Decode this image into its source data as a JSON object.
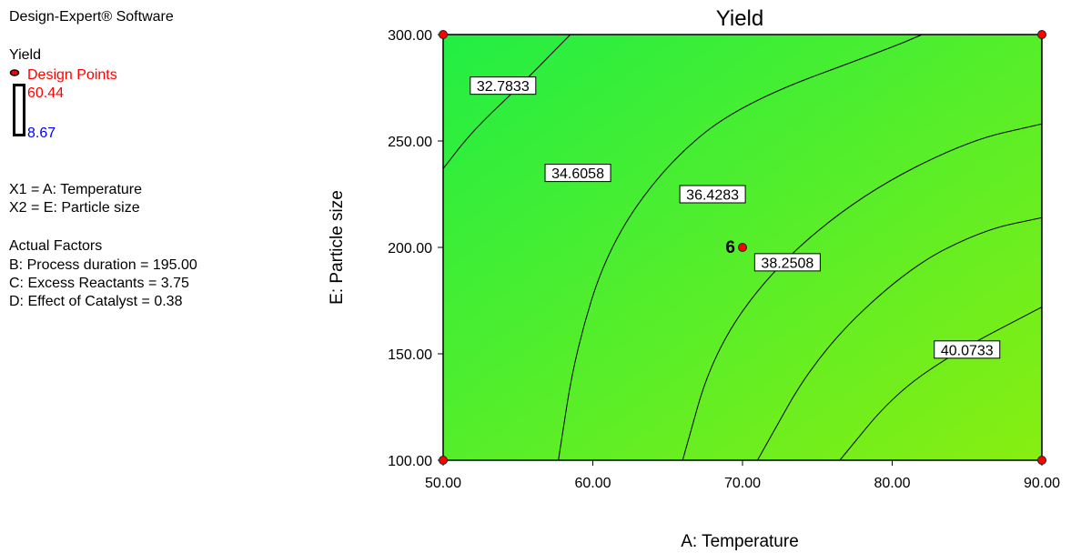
{
  "sidebar": {
    "software": "Design-Expert® Software",
    "response": "Yield",
    "design_points_label": "Design Points",
    "scale_high": "60.44",
    "scale_low": "8.67",
    "x1": "X1 = A: Temperature",
    "x2": "X2 = E: Particle size",
    "actual_factors_title": "Actual Factors",
    "factors": [
      "B: Process duration = 195.00",
      "C: Excess Reactants = 3.75",
      "D: Effect of Catalyst = 0.38"
    ]
  },
  "colors": {
    "design_point": "#ff0000",
    "high_value": "#ff0000",
    "low_value": "#0000ff",
    "fill_top_left": "#22ee44",
    "fill_bottom_right": "#88ee11"
  },
  "chart_data": {
    "type": "contour",
    "title": "Yield",
    "xlabel": "A: Temperature",
    "ylabel": "E: Particle size",
    "xlim": [
      50,
      90
    ],
    "ylim": [
      100,
      300
    ],
    "x_ticks": [
      "50.00",
      "60.00",
      "70.00",
      "80.00",
      "90.00"
    ],
    "y_ticks": [
      "100.00",
      "150.00",
      "200.00",
      "250.00",
      "300.00"
    ],
    "contours": [
      {
        "label": "32.7833",
        "points": [
          [
            50,
            237
          ],
          [
            52,
            255
          ],
          [
            55,
            275
          ],
          [
            58.5,
            300
          ]
        ],
        "label_at": [
          54,
          276
        ]
      },
      {
        "label": "34.6058",
        "points": [
          [
            57.7,
            100
          ],
          [
            58.8,
            150
          ],
          [
            61,
            200
          ],
          [
            65,
            240
          ],
          [
            70,
            268
          ],
          [
            80,
            294
          ],
          [
            82,
            300
          ]
        ],
        "label_at": [
          59,
          235
        ]
      },
      {
        "label": "36.4283",
        "points": [
          [
            66,
            100
          ],
          [
            68,
            150
          ],
          [
            72,
            190
          ],
          [
            78,
            225
          ],
          [
            85,
            250
          ],
          [
            90,
            258
          ]
        ],
        "label_at": [
          68,
          225
        ]
      },
      {
        "label": "38.2508",
        "points": [
          [
            71,
            100
          ],
          [
            75,
            150
          ],
          [
            81,
            190
          ],
          [
            86,
            208
          ],
          [
            90,
            214
          ]
        ],
        "label_at": [
          73,
          193
        ]
      },
      {
        "label": "40.0733",
        "points": [
          [
            76.5,
            100
          ],
          [
            80,
            130
          ],
          [
            84,
            150
          ],
          [
            90,
            172
          ]
        ],
        "label_at": [
          85,
          152
        ]
      }
    ],
    "design_points": [
      {
        "x": 50,
        "y": 100
      },
      {
        "x": 50,
        "y": 300
      },
      {
        "x": 90,
        "y": 100
      },
      {
        "x": 90,
        "y": 300
      },
      {
        "x": 70,
        "y": 200,
        "label": "6"
      }
    ]
  }
}
